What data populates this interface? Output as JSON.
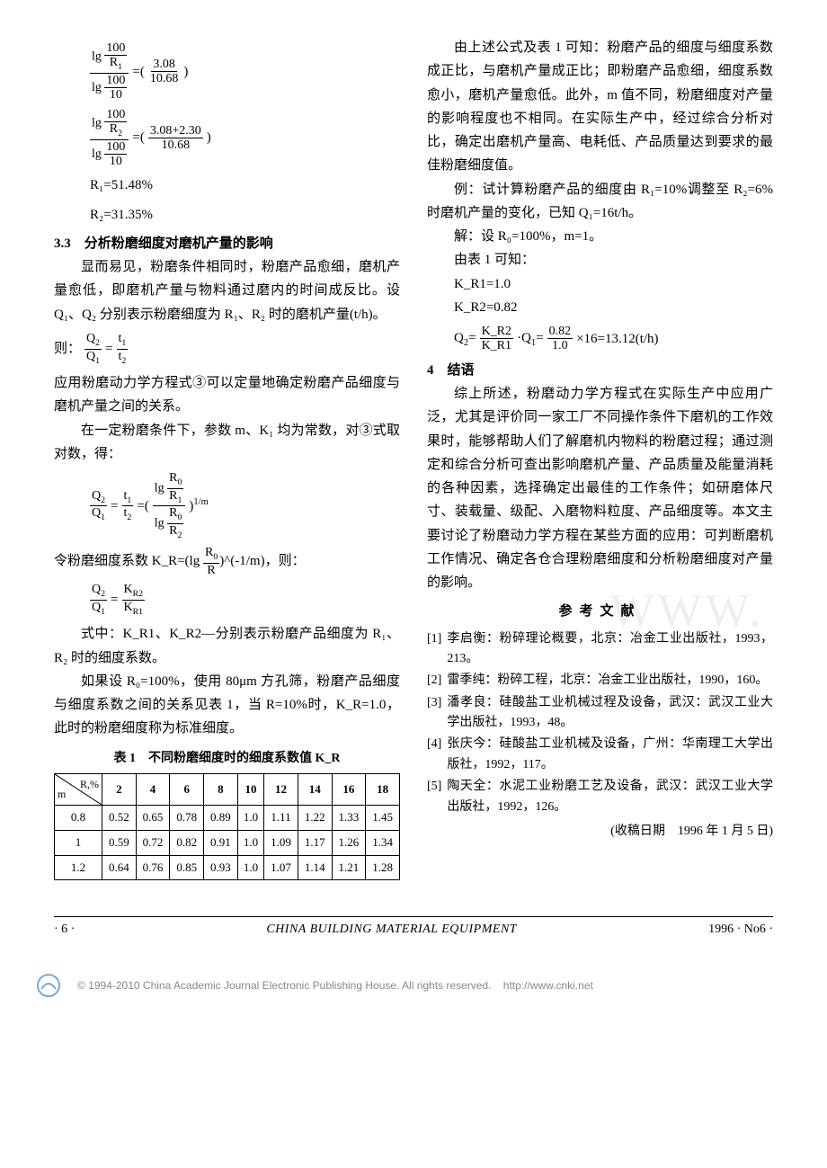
{
  "left": {
    "eq1_lhs_num": "lg 100/R₁",
    "eq1_lhs_den": "lg 100/10",
    "eq1_rhs_num": "3.08",
    "eq1_rhs_den": "10.68",
    "eq2_lhs_num": "lg 100/R₂",
    "eq2_lhs_den": "lg 100/10",
    "eq2_rhs_num": "3.08+2.30",
    "eq2_rhs_den": "10.68",
    "r1": "R₁=51.48%",
    "r2": "R₂=31.35%",
    "sec33_title": "3.3　分析粉磨细度对磨机产量的影响",
    "p33_1": "显而易见，粉磨条件相同时，粉磨产品愈细，磨机产量愈低，即磨机产量与物料通过磨内的时间成反比。设 Q₁、Q₂ 分别表示粉磨细度为 R₁、R₂ 时的磨机产量(t/h)。",
    "p33_2_pre": "则：",
    "p33_3": "应用粉磨动力学方程式③可以定量地确定粉磨产品细度与磨机产量之间的关系。",
    "p33_4": "在一定粉磨条件下，参数 m、K₁ 均为常数，对③式取对数，得：",
    "p33_5_pre": "令粉磨细度系数 K_R=(lg ",
    "p33_5_mid": ")^(-1/m)，则：",
    "p33_6": "式中：K_R1、K_R2—分别表示粉磨产品细度为 R₁、R₂ 时的细度系数。",
    "p33_7": "如果设 R₀=100%，使用 80μm 方孔筛，粉磨产品细度与细度系数之间的关系见表 1，当 R=10%时，K_R=1.0，此时的粉磨细度称为标准细度。",
    "table_title": "表 1　不同粉磨细度时的细度系数值 K_R",
    "table_diag_top": "R,%",
    "table_diag_bot": "m",
    "table_cols": [
      "2",
      "4",
      "6",
      "8",
      "10",
      "12",
      "14",
      "16",
      "18"
    ],
    "table_rows": [
      {
        "m": "0.8",
        "v": [
          "0.52",
          "0.65",
          "0.78",
          "0.89",
          "1.0",
          "1.11",
          "1.22",
          "1.33",
          "1.45"
        ]
      },
      {
        "m": "1",
        "v": [
          "0.59",
          "0.72",
          "0.82",
          "0.91",
          "1.0",
          "1.09",
          "1.17",
          "1.26",
          "1.34"
        ]
      },
      {
        "m": "1.2",
        "v": [
          "0.64",
          "0.76",
          "0.85",
          "0.93",
          "1.0",
          "1.07",
          "1.14",
          "1.21",
          "1.28"
        ]
      }
    ]
  },
  "right": {
    "p1": "由上述公式及表 1 可知：粉磨产品的细度与细度系数成正比，与磨机产量成正比；即粉磨产品愈细，细度系数愈小，磨机产量愈低。此外，m 值不同，粉磨细度对产量的影响程度也不相同。在实际生产中，经过综合分析对比，确定出磨机产量高、电耗低、产品质量达到要求的最佳粉磨细度值。",
    "p2": "例：试计算粉磨产品的细度由 R₁=10%调整至 R₂=6%时磨机产量的变化，已知 Q₁=16t/h。",
    "solve_1": "解：设 R₀=100%，m=1。",
    "solve_2": "由表 1 可知：",
    "solve_3": "K_R1=1.0",
    "solve_4": "K_R2=0.82",
    "solve_5a": "K_R2",
    "solve_5b": "K_R1",
    "solve_5c": "0.82",
    "solve_5d": "1.0",
    "solve_5e": "×16=13.12(t/h)",
    "sec4_title": "4　结语",
    "p4": "综上所述，粉磨动力学方程式在实际生产中应用广泛，尤其是评价同一家工厂不同操作条件下磨机的工作效果时，能够帮助人们了解磨机内物料的粉磨过程；通过测定和综合分析可查出影响磨机产量、产品质量及能量消耗的各种因素，选择确定出最佳的工作条件；如研磨体尺寸、装载量、级配、入磨物料粒度、产品细度等。本文主要讨论了粉磨动力学方程在某些方面的应用：可判断磨机工作情况、确定各仓合理粉磨细度和分析粉磨细度对产量的影响。",
    "refs_head": "参考文献",
    "refs": [
      {
        "n": "[1]",
        "t": "李启衡：粉碎理论概要，北京：冶金工业出版社，1993，213。"
      },
      {
        "n": "[2]",
        "t": "雷季纯：粉碎工程，北京：冶金工业出版社，1990，160。"
      },
      {
        "n": "[3]",
        "t": "潘孝良：硅酸盐工业机械过程及设备，武汉：武汉工业大学出版社，1993，48。"
      },
      {
        "n": "[4]",
        "t": "张庆今：硅酸盐工业机械及设备，广州：华南理工大学出版社，1992，117。"
      },
      {
        "n": "[5]",
        "t": "陶天全：水泥工业粉磨工艺及设备，武汉：武汉工业大学出版社，1992，126。"
      }
    ],
    "recv": "(收稿日期　1996 年 1 月 5 日)"
  },
  "footer": {
    "page": "· 6 ·",
    "journal": "CHINA BUILDING MATERIAL EQUIPMENT",
    "issue": "1996 · No6 ·"
  },
  "copyright": {
    "text": "© 1994-2010 China Academic Journal Electronic Publishing House. All rights reserved.",
    "url": "http://www.cnki.net"
  },
  "watermark": "WWW."
}
